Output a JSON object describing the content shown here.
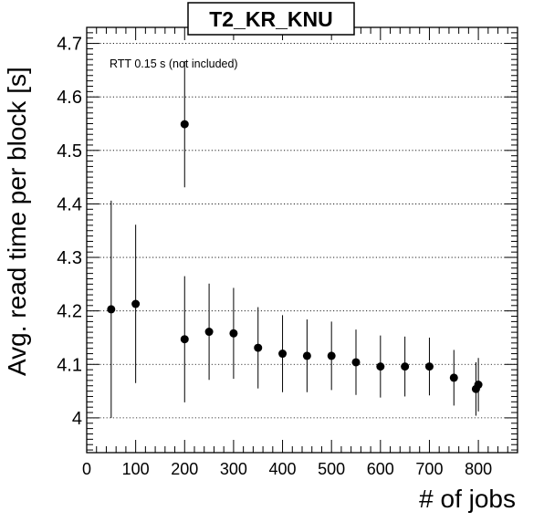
{
  "chart_data": {
    "type": "scatter",
    "title": "T2_KR_KNU",
    "annotation": "RTT 0.15 s (not included)",
    "xlabel": "# of jobs",
    "ylabel": "Avg. read time per block [s]",
    "xlim": [
      0,
      880
    ],
    "ylim": [
      3.935,
      4.73
    ],
    "x_ticks": [
      0,
      100,
      200,
      300,
      400,
      500,
      600,
      700,
      800
    ],
    "y_ticks": [
      4,
      4.1,
      4.2,
      4.3,
      4.4,
      4.5,
      4.6,
      4.7
    ],
    "y_tick_labels": [
      "4",
      "4.1",
      "4.2",
      "4.3",
      "4.4",
      "4.5",
      "4.6",
      "4.7"
    ],
    "grid": "horizontal dotted",
    "marker_color": "#000000",
    "series": [
      {
        "points": [
          {
            "x": 50,
            "y": 4.203,
            "err": 0.203
          },
          {
            "x": 100,
            "y": 4.213,
            "err": 0.148
          },
          {
            "x": 200,
            "y": 4.549,
            "err": 0.118
          },
          {
            "x": 200,
            "y": 4.147,
            "err": 0.118
          },
          {
            "x": 250,
            "y": 4.161,
            "err": 0.09
          },
          {
            "x": 300,
            "y": 4.158,
            "err": 0.085
          },
          {
            "x": 350,
            "y": 4.131,
            "err": 0.076
          },
          {
            "x": 400,
            "y": 4.12,
            "err": 0.072
          },
          {
            "x": 450,
            "y": 4.116,
            "err": 0.068
          },
          {
            "x": 500,
            "y": 4.116,
            "err": 0.064
          },
          {
            "x": 550,
            "y": 4.104,
            "err": 0.061
          },
          {
            "x": 600,
            "y": 4.096,
            "err": 0.058
          },
          {
            "x": 650,
            "y": 4.096,
            "err": 0.056
          },
          {
            "x": 700,
            "y": 4.096,
            "err": 0.054
          },
          {
            "x": 750,
            "y": 4.075,
            "err": 0.052
          },
          {
            "x": 795,
            "y": 4.054,
            "err": 0.05
          },
          {
            "x": 800,
            "y": 4.062,
            "err": 0.05
          }
        ]
      }
    ]
  }
}
